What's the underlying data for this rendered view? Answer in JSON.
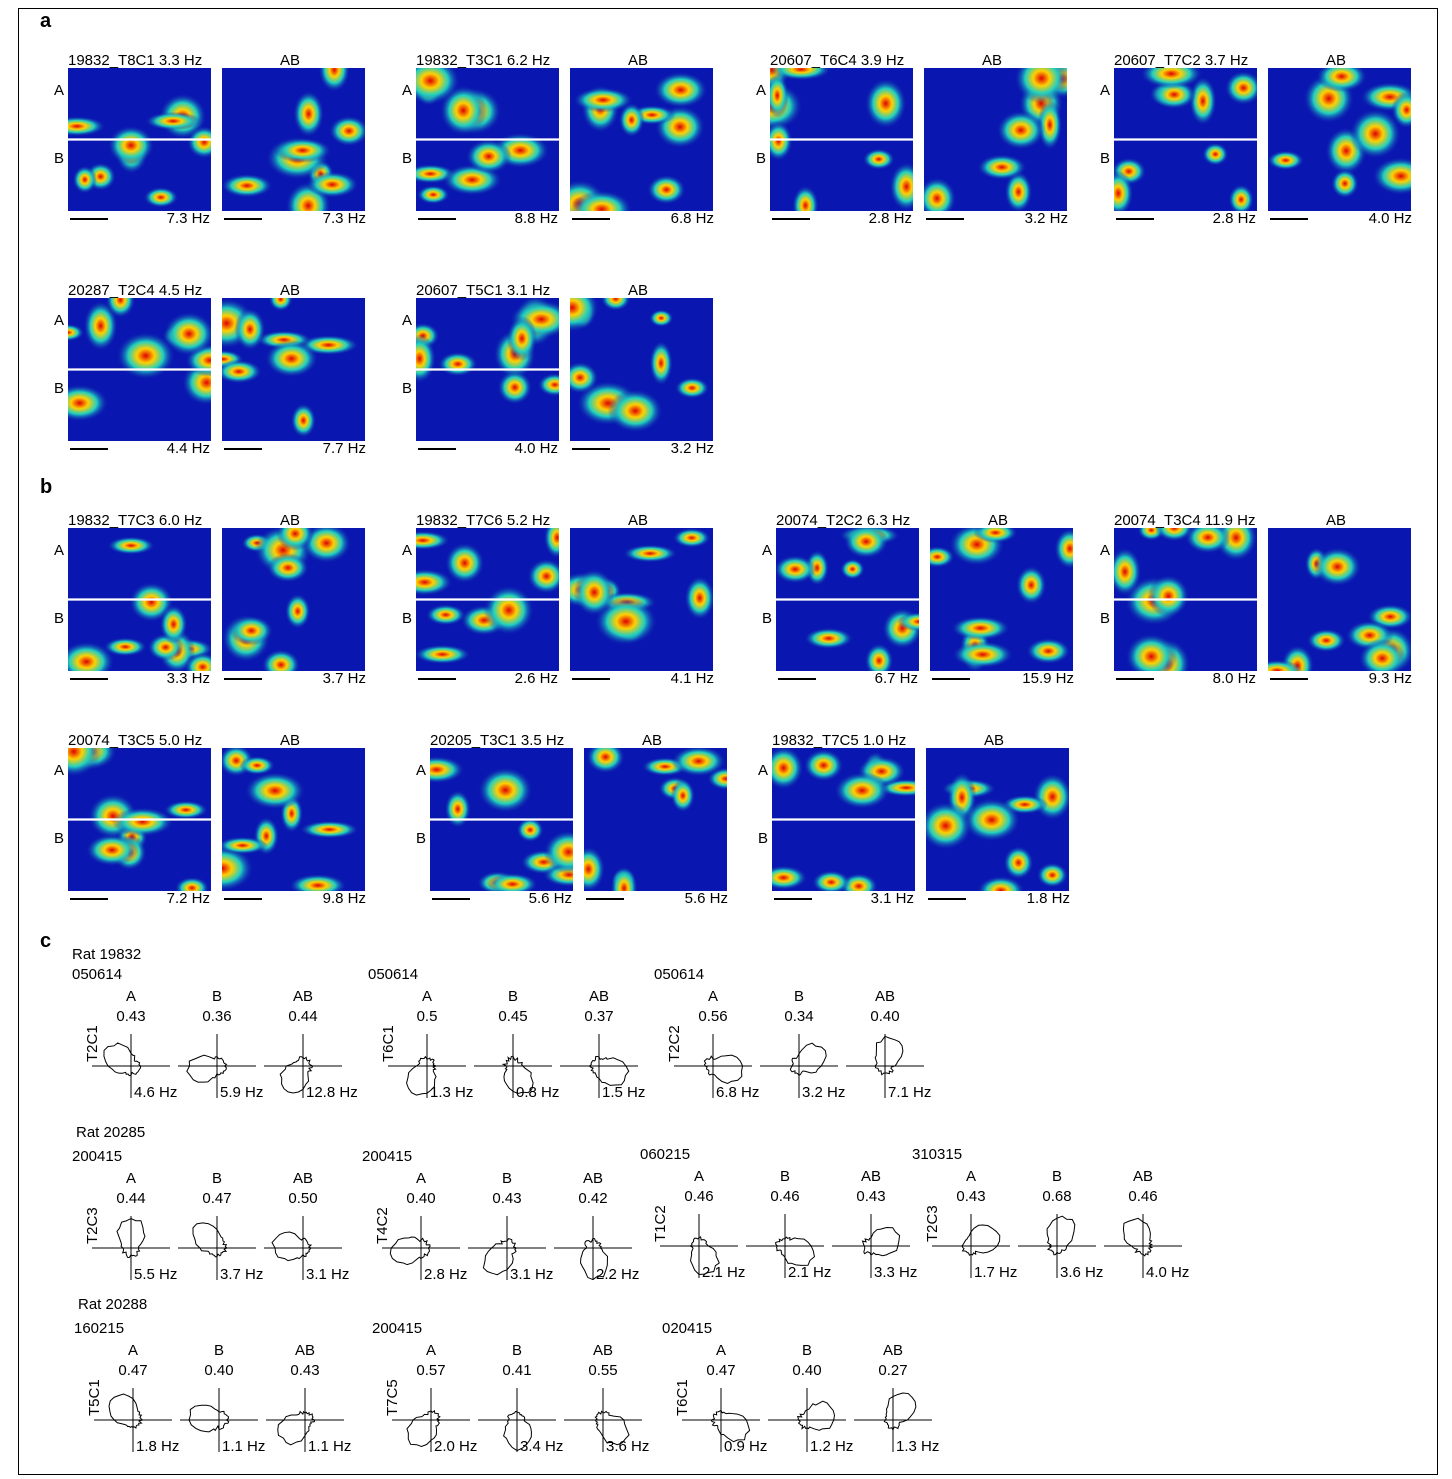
{
  "panels": {
    "a": "a",
    "b": "b",
    "c": "c"
  },
  "row_labels": {
    "a": "A",
    "b": "B"
  },
  "ab_label": "AB",
  "maps_a": [
    {
      "title": "19832_T8C1 3.3 Hz",
      "hz1": "7.3 Hz",
      "hz2": "7.3 Hz"
    },
    {
      "title": "19832_T3C1 6.2 Hz",
      "hz1": "8.8 Hz",
      "hz2": "6.8 Hz"
    },
    {
      "title": "20607_T6C4 3.9 Hz",
      "hz1": "2.8 Hz",
      "hz2": "3.2 Hz"
    },
    {
      "title": "20607_T7C2  3.7 Hz",
      "hz1": "2.8 Hz",
      "hz2": "4.0 Hz"
    },
    {
      "title": "20287_T2C4 4.5 Hz",
      "hz1": "4.4 Hz",
      "hz2": "7.7 Hz"
    },
    {
      "title": "20607_T5C1 3.1 Hz",
      "hz1": "4.0 Hz",
      "hz2": "3.2 Hz"
    }
  ],
  "maps_b": [
    {
      "title": "19832_T7C3 6.0 Hz",
      "hz1": "3.3 Hz",
      "hz2": "3.7 Hz"
    },
    {
      "title": "19832_T7C6  5.2 Hz",
      "hz1": "2.6 Hz",
      "hz2": "4.1 Hz"
    },
    {
      "title": "20074_T2C2 6.3 Hz",
      "hz1": "6.7 Hz",
      "hz2": "15.9 Hz"
    },
    {
      "title": "20074_T3C4 11.9 Hz",
      "hz1": "8.0 Hz",
      "hz2": "9.3 Hz"
    },
    {
      "title": "20074_T3C5 5.0 Hz",
      "hz1": "7.2 Hz",
      "hz2": "9.8 Hz"
    },
    {
      "title": "20205_T3C1 3.5 Hz",
      "hz1": "5.6 Hz",
      "hz2": "5.6 Hz"
    },
    {
      "title": "19832_T7C5 1.0 Hz",
      "hz1": "3.1 Hz",
      "hz2": "1.8 Hz"
    }
  ],
  "rats": [
    "Rat 19832",
    "Rat 20285",
    "Rat 20288"
  ],
  "polar_groups": [
    {
      "date": "050614",
      "cell": "T2C1",
      "vals": [
        "0.43",
        "0.36",
        "0.44"
      ],
      "hz": [
        "4.6 Hz",
        "5.9 Hz",
        "12.8 Hz"
      ]
    },
    {
      "date": "050614",
      "cell": "T6C1",
      "vals": [
        "0.5",
        "0.45",
        "0.37"
      ],
      "hz": [
        "1.3 Hz",
        "0.8 Hz",
        "1.5 Hz"
      ]
    },
    {
      "date": "050614",
      "cell": "T2C2",
      "vals": [
        "0.56",
        "0.34",
        "0.40"
      ],
      "hz": [
        "6.8 Hz",
        "3.2 Hz",
        "7.1 Hz"
      ]
    },
    {
      "date": "200415",
      "cell": "T2C3",
      "vals": [
        "0.44",
        "0.47",
        "0.50"
      ],
      "hz": [
        "5.5 Hz",
        "3.7 Hz",
        "3.1 Hz"
      ]
    },
    {
      "date": "200415",
      "cell": "T4C2",
      "vals": [
        "0.40",
        "0.43",
        "0.42"
      ],
      "hz": [
        "2.8 Hz",
        "3.1 Hz",
        "2.2 Hz"
      ]
    },
    {
      "date": "060215",
      "cell": "T1C2",
      "vals": [
        "0.46",
        "0.46",
        "0.43"
      ],
      "hz": [
        "2.1 Hz",
        "2.1 Hz",
        "3.3 Hz"
      ]
    },
    {
      "date": "310315",
      "cell": "T2C3",
      "vals": [
        "0.43",
        "0.68",
        "0.46"
      ],
      "hz": [
        "1.7 Hz",
        "3.6 Hz",
        "4.0 Hz"
      ]
    },
    {
      "date": "160215",
      "cell": "T5C1",
      "vals": [
        "0.47",
        "0.40",
        "0.43"
      ],
      "hz": [
        "1.8 Hz",
        "1.1 Hz",
        "1.1 Hz"
      ]
    },
    {
      "date": "200415",
      "cell": "T7C5",
      "vals": [
        "0.57",
        "0.41",
        "0.55"
      ],
      "hz": [
        "2.0 Hz",
        "3.4 Hz",
        "3.6 Hz"
      ]
    },
    {
      "date": "020415",
      "cell": "T6C1",
      "vals": [
        "0.47",
        "0.40",
        "0.27"
      ],
      "hz": [
        "0.9 Hz",
        "1.2 Hz",
        "1.3 Hz"
      ]
    }
  ],
  "polar_labels": [
    "A",
    "B",
    "AB"
  ],
  "colors": {
    "map_bg": "#0a16b0",
    "hot": "#e00000",
    "warm": "#ffd000",
    "mid": "#20d0c0"
  }
}
